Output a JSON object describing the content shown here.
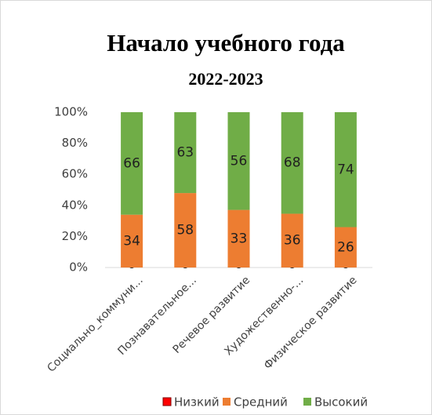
{
  "chart_data": {
    "type": "bar",
    "stack": "percent",
    "title": "Начало учебного года",
    "subtitle": "2022-2023",
    "categories": [
      "Социально_коммуни...",
      "Познавательное...",
      "Речевое развитие",
      "Художественно-...",
      "Физическое развитие"
    ],
    "series": [
      {
        "name": "Низкий",
        "color": "#ff0000",
        "values": [
          0,
          0,
          0,
          0,
          0
        ]
      },
      {
        "name": "Средний",
        "color": "#ed7d31",
        "values": [
          34,
          58,
          33,
          36,
          26
        ]
      },
      {
        "name": "Высокий",
        "color": "#70ad47",
        "values": [
          66,
          63,
          56,
          68,
          74
        ]
      }
    ],
    "ylim": [
      0,
      100
    ],
    "yticks": [
      {
        "value": 0,
        "label": "0%"
      },
      {
        "value": 20,
        "label": "20%"
      },
      {
        "value": 40,
        "label": "40%"
      },
      {
        "value": 60,
        "label": "60%"
      },
      {
        "value": 80,
        "label": "80%"
      },
      {
        "value": 100,
        "label": "100%"
      }
    ],
    "legend": "bottom"
  }
}
